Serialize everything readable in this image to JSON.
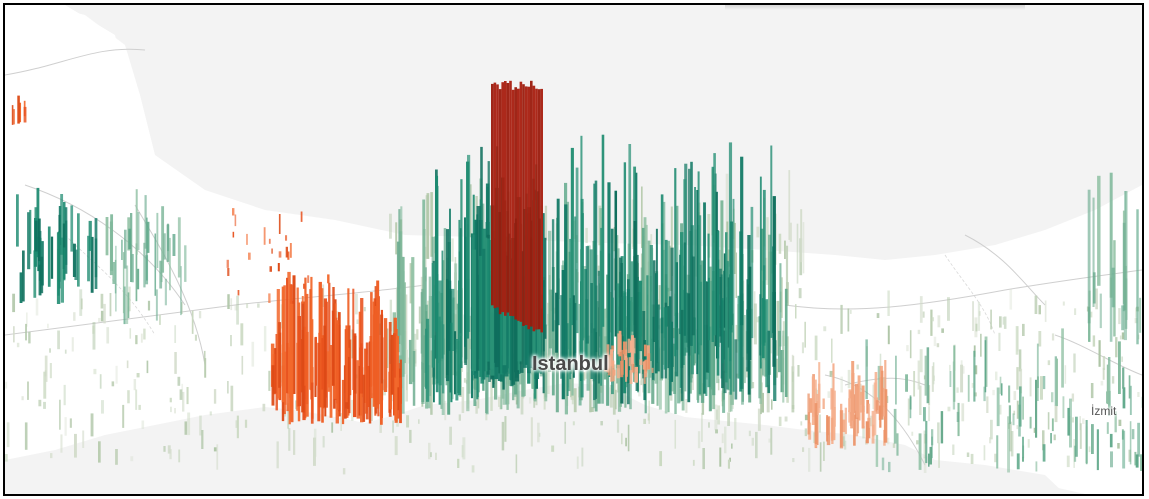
{
  "map": {
    "labels": {
      "istanbul": "Istanbul",
      "izmit": "İzmit"
    },
    "colors": {
      "water": "#f3f3f3",
      "land": "#ffffff",
      "road": "#c8c8c8",
      "low_density": "#c2d1ba",
      "mid_density": "#5fa88a",
      "high_density_green": "#137a66",
      "orange_outlier": "#e8521e",
      "peak_red": "#a81e0f",
      "light_orange": "#f2a47e"
    }
  }
}
